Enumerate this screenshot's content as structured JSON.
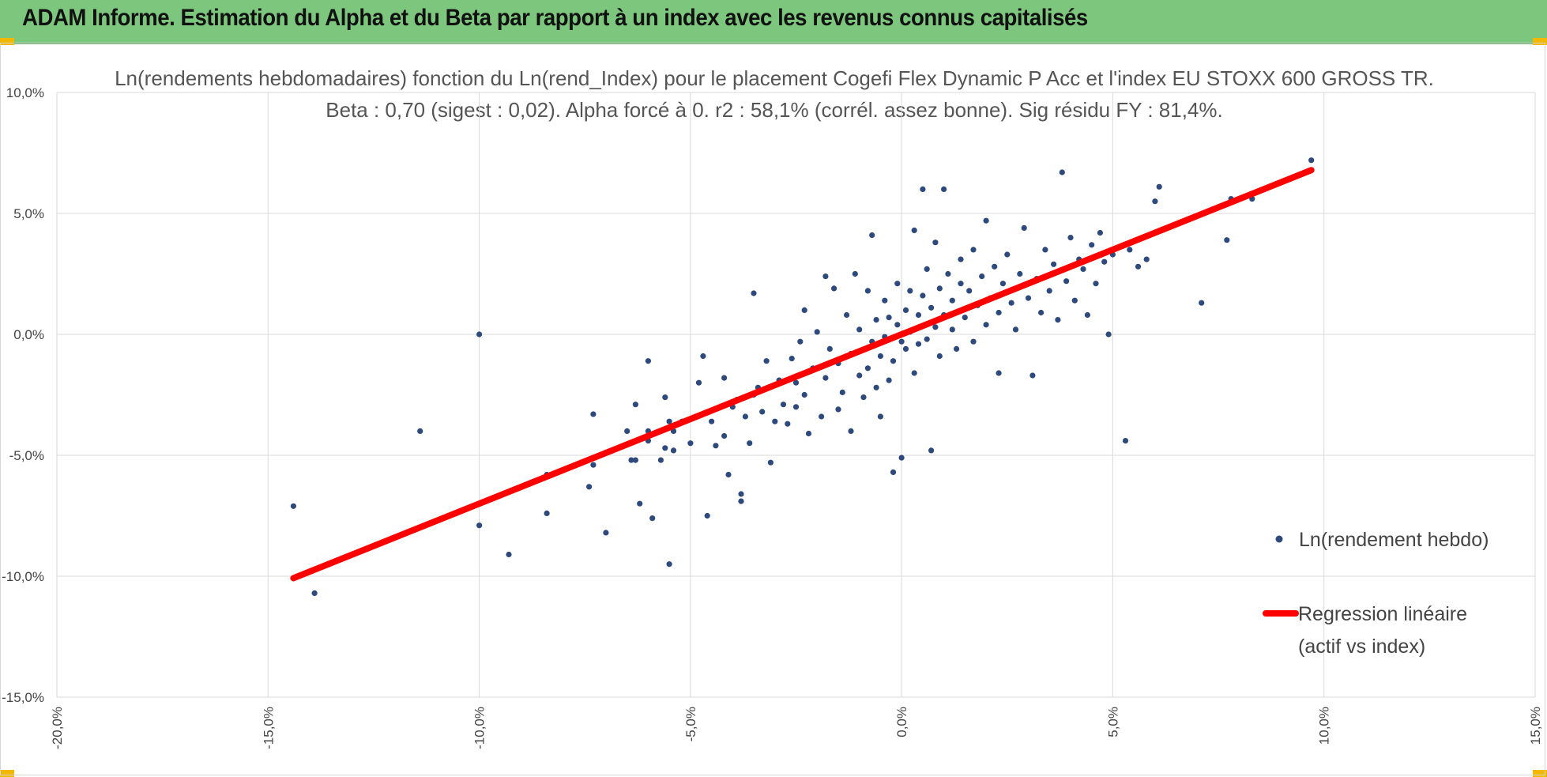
{
  "banner": {
    "title": "ADAM Informe. Estimation du Alpha et du Beta par rapport à un index avec les revenus connus capitalisés",
    "background": "#7dc67d"
  },
  "chart_data": {
    "type": "scatter",
    "title": "Ln(rendements hebdomadaires) fonction du Ln(rend_Index) pour le placement Cogefi Flex Dynamic P Acc et l'index EU STOXX 600 GROSS TR.",
    "subtitle": "Beta : 0,70 (sigest : 0,02). Alpha forcé à 0. r2 : 58,1% (corrél. assez bonne). Sig résidu FY : 81,4%.",
    "xlabel": "",
    "ylabel": "",
    "xlim": [
      -0.2,
      0.15
    ],
    "ylim": [
      -0.15,
      0.1
    ],
    "x_ticks": [
      -0.2,
      -0.15,
      -0.1,
      -0.05,
      0.0,
      0.05,
      0.1,
      0.15
    ],
    "y_ticks": [
      -0.15,
      -0.1,
      -0.05,
      0.0,
      0.05,
      0.1
    ],
    "x_tick_labels": [
      "-20,0%",
      "-15,0%",
      "-10,0%",
      "-5,0%",
      "0,0%",
      "5,0%",
      "10,0%",
      "15,0%"
    ],
    "y_tick_labels": [
      "-15,0%",
      "-10,0%",
      "-5,0%",
      "0,0%",
      "5,0%",
      "10,0%"
    ],
    "grid": true,
    "legend_position": "right",
    "series": [
      {
        "name": "Ln(rendement hebdo)",
        "kind": "scatter",
        "color": "#2e4a7d",
        "points": [
          [
            -0.144,
            -0.071
          ],
          [
            -0.139,
            -0.107
          ],
          [
            -0.114,
            -0.04
          ],
          [
            -0.1,
            0.0
          ],
          [
            -0.1,
            -0.079
          ],
          [
            -0.093,
            -0.091
          ],
          [
            -0.084,
            -0.074
          ],
          [
            -0.084,
            -0.058
          ],
          [
            -0.074,
            -0.063
          ],
          [
            -0.073,
            -0.033
          ],
          [
            -0.073,
            -0.054
          ],
          [
            -0.07,
            -0.082
          ],
          [
            -0.065,
            -0.04
          ],
          [
            -0.064,
            -0.052
          ],
          [
            -0.063,
            -0.052
          ],
          [
            -0.063,
            -0.029
          ],
          [
            -0.062,
            -0.07
          ],
          [
            -0.06,
            -0.044
          ],
          [
            -0.06,
            -0.04
          ],
          [
            -0.06,
            -0.011
          ],
          [
            -0.059,
            -0.076
          ],
          [
            -0.057,
            -0.052
          ],
          [
            -0.056,
            -0.047
          ],
          [
            -0.056,
            -0.026
          ],
          [
            -0.055,
            -0.036
          ],
          [
            -0.055,
            -0.095
          ],
          [
            -0.054,
            -0.04
          ],
          [
            -0.054,
            -0.048
          ],
          [
            -0.052,
            -0.036
          ],
          [
            -0.05,
            -0.045
          ],
          [
            -0.048,
            -0.02
          ],
          [
            -0.047,
            -0.009
          ],
          [
            -0.046,
            -0.075
          ],
          [
            -0.045,
            -0.036
          ],
          [
            -0.044,
            -0.046
          ],
          [
            -0.042,
            -0.018
          ],
          [
            -0.042,
            -0.042
          ],
          [
            -0.041,
            -0.058
          ],
          [
            -0.04,
            -0.03
          ],
          [
            -0.039,
            -0.027
          ],
          [
            -0.038,
            -0.066
          ],
          [
            -0.038,
            -0.069
          ],
          [
            -0.037,
            -0.034
          ],
          [
            -0.036,
            -0.045
          ],
          [
            -0.035,
            0.017
          ],
          [
            -0.035,
            -0.025
          ],
          [
            -0.034,
            -0.022
          ],
          [
            -0.033,
            -0.032
          ],
          [
            -0.032,
            -0.011
          ],
          [
            -0.031,
            -0.053
          ],
          [
            -0.03,
            -0.036
          ],
          [
            -0.029,
            -0.019
          ],
          [
            -0.028,
            -0.029
          ],
          [
            -0.027,
            -0.037
          ],
          [
            -0.026,
            -0.01
          ],
          [
            -0.025,
            -0.02
          ],
          [
            -0.025,
            -0.03
          ],
          [
            -0.024,
            -0.003
          ],
          [
            -0.023,
            0.01
          ],
          [
            -0.023,
            -0.025
          ],
          [
            -0.022,
            -0.041
          ],
          [
            -0.021,
            -0.014
          ],
          [
            -0.02,
            0.001
          ],
          [
            -0.019,
            -0.034
          ],
          [
            -0.018,
            -0.018
          ],
          [
            -0.018,
            0.024
          ],
          [
            -0.017,
            -0.006
          ],
          [
            -0.016,
            0.019
          ],
          [
            -0.015,
            -0.031
          ],
          [
            -0.015,
            -0.012
          ],
          [
            -0.014,
            -0.024
          ],
          [
            -0.013,
            0.008
          ],
          [
            -0.012,
            -0.008
          ],
          [
            -0.012,
            -0.04
          ],
          [
            -0.011,
            0.025
          ],
          [
            -0.01,
            -0.017
          ],
          [
            -0.01,
            0.002
          ],
          [
            -0.009,
            -0.026
          ],
          [
            -0.008,
            0.018
          ],
          [
            -0.008,
            -0.014
          ],
          [
            -0.007,
            -0.003
          ],
          [
            -0.007,
            0.041
          ],
          [
            -0.006,
            -0.022
          ],
          [
            -0.006,
            0.006
          ],
          [
            -0.005,
            -0.009
          ],
          [
            -0.005,
            -0.034
          ],
          [
            -0.004,
            0.014
          ],
          [
            -0.004,
            -0.001
          ],
          [
            -0.003,
            -0.019
          ],
          [
            -0.003,
            0.007
          ],
          [
            -0.002,
            -0.057
          ],
          [
            -0.002,
            -0.011
          ],
          [
            -0.001,
            0.004
          ],
          [
            -0.001,
            0.021
          ],
          [
            0.0,
            -0.003
          ],
          [
            0.0,
            -0.051
          ],
          [
            0.001,
            0.01
          ],
          [
            0.001,
            -0.006
          ],
          [
            0.002,
            0.018
          ],
          [
            0.002,
            0.001
          ],
          [
            0.003,
            -0.016
          ],
          [
            0.003,
            0.043
          ],
          [
            0.004,
            0.008
          ],
          [
            0.004,
            -0.004
          ],
          [
            0.005,
            0.06
          ],
          [
            0.005,
            0.016
          ],
          [
            0.006,
            -0.002
          ],
          [
            0.006,
            0.027
          ],
          [
            0.007,
            0.011
          ],
          [
            0.007,
            -0.048
          ],
          [
            0.008,
            0.003
          ],
          [
            0.008,
            0.038
          ],
          [
            0.009,
            0.019
          ],
          [
            0.009,
            -0.009
          ],
          [
            0.01,
            0.008
          ],
          [
            0.01,
            0.06
          ],
          [
            0.011,
            0.025
          ],
          [
            0.012,
            0.002
          ],
          [
            0.012,
            0.014
          ],
          [
            0.013,
            -0.006
          ],
          [
            0.014,
            0.021
          ],
          [
            0.014,
            0.031
          ],
          [
            0.015,
            0.007
          ],
          [
            0.016,
            0.018
          ],
          [
            0.017,
            -0.003
          ],
          [
            0.017,
            0.035
          ],
          [
            0.018,
            0.012
          ],
          [
            0.019,
            0.024
          ],
          [
            0.02,
            0.004
          ],
          [
            0.02,
            0.047
          ],
          [
            0.021,
            0.015
          ],
          [
            0.022,
            0.028
          ],
          [
            0.023,
            -0.016
          ],
          [
            0.023,
            0.009
          ],
          [
            0.024,
            0.021
          ],
          [
            0.025,
            0.033
          ],
          [
            0.026,
            0.013
          ],
          [
            0.027,
            0.002
          ],
          [
            0.028,
            0.025
          ],
          [
            0.029,
            0.044
          ],
          [
            0.03,
            0.015
          ],
          [
            0.031,
            -0.017
          ],
          [
            0.032,
            0.023
          ],
          [
            0.033,
            0.009
          ],
          [
            0.034,
            0.035
          ],
          [
            0.035,
            0.018
          ],
          [
            0.036,
            0.029
          ],
          [
            0.037,
            0.006
          ],
          [
            0.038,
            0.067
          ],
          [
            0.039,
            0.022
          ],
          [
            0.04,
            0.04
          ],
          [
            0.041,
            0.014
          ],
          [
            0.042,
            0.031
          ],
          [
            0.043,
            0.027
          ],
          [
            0.044,
            0.008
          ],
          [
            0.045,
            0.037
          ],
          [
            0.046,
            0.021
          ],
          [
            0.047,
            0.042
          ],
          [
            0.048,
            0.03
          ],
          [
            0.049,
            0.0
          ],
          [
            0.05,
            0.033
          ],
          [
            0.053,
            -0.044
          ],
          [
            0.054,
            0.035
          ],
          [
            0.056,
            0.028
          ],
          [
            0.058,
            0.031
          ],
          [
            0.06,
            0.055
          ],
          [
            0.061,
            0.061
          ],
          [
            0.071,
            0.013
          ],
          [
            0.077,
            0.039
          ],
          [
            0.078,
            0.056
          ],
          [
            0.083,
            0.056
          ],
          [
            0.097,
            0.072
          ]
        ]
      },
      {
        "name": "Regression linéaire (actif vs index)",
        "kind": "line",
        "color": "#ff0000",
        "slope": 0.7,
        "x_range": [
          -0.144,
          0.097
        ]
      }
    ],
    "legend": {
      "scatter_label": "Ln(rendement hebdo)",
      "line_label_1": "Regression linéaire",
      "line_label_2": "(actif vs index)"
    }
  }
}
